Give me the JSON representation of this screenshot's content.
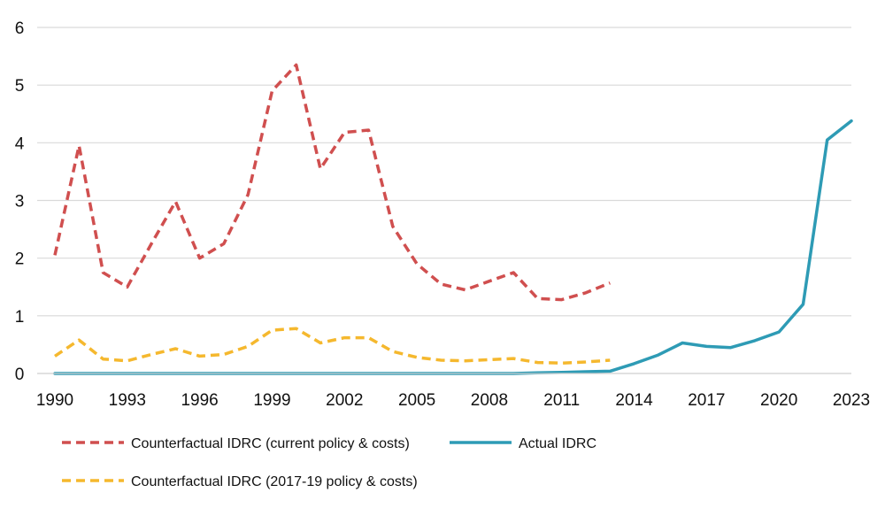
{
  "chart_data": {
    "type": "line",
    "title": "",
    "xlabel": "",
    "ylabel": "",
    "x": [
      1990,
      1991,
      1992,
      1993,
      1994,
      1995,
      1996,
      1997,
      1998,
      1999,
      2000,
      2001,
      2002,
      2003,
      2004,
      2005,
      2006,
      2007,
      2008,
      2009,
      2010,
      2011,
      2012,
      2013,
      2014,
      2015,
      2016,
      2017,
      2018,
      2019,
      2020,
      2021,
      2022,
      2023
    ],
    "x_ticks": [
      "1990",
      "1993",
      "1996",
      "1999",
      "2002",
      "2005",
      "2008",
      "2011",
      "2014",
      "2017",
      "2020",
      "2023"
    ],
    "y_ticks": [
      "0",
      "1",
      "2",
      "3",
      "4",
      "5",
      "6"
    ],
    "ylim": [
      0,
      6
    ],
    "xlim": [
      1990,
      2023
    ],
    "grid": "horizontal",
    "legend_placement": "bottom",
    "series": [
      {
        "name": "Counterfactual IDRC (current policy & costs)",
        "color": "#d04f4f",
        "style": "dashed",
        "x": [
          1990,
          1991,
          1992,
          1993,
          1994,
          1995,
          1996,
          1997,
          1998,
          1999,
          2000,
          2001,
          2002,
          2003,
          2004,
          2005,
          2006,
          2007,
          2008,
          2009,
          2010,
          2011,
          2012,
          2013
        ],
        "values": [
          2.05,
          3.95,
          1.75,
          1.5,
          2.25,
          2.98,
          2.0,
          2.25,
          3.1,
          4.9,
          5.35,
          3.55,
          4.18,
          4.22,
          2.55,
          1.9,
          1.55,
          1.45,
          1.6,
          1.75,
          1.3,
          1.28,
          1.4,
          1.57
        ]
      },
      {
        "name": "Actual IDRC",
        "color": "#2e9bb5",
        "style": "solid",
        "x": [
          1990,
          1991,
          1992,
          1993,
          1994,
          1995,
          1996,
          1997,
          1998,
          1999,
          2000,
          2001,
          2002,
          2003,
          2004,
          2005,
          2006,
          2007,
          2008,
          2009,
          2010,
          2011,
          2012,
          2013,
          2014,
          2015,
          2016,
          2017,
          2018,
          2019,
          2020,
          2021,
          2022,
          2023
        ],
        "values": [
          0,
          0,
          0,
          0,
          0,
          0,
          0,
          0,
          0,
          0,
          0,
          0,
          0,
          0,
          0,
          0,
          0,
          0,
          0,
          0,
          0.01,
          0.02,
          0.03,
          0.04,
          0.17,
          0.32,
          0.53,
          0.47,
          0.45,
          0.57,
          0.72,
          1.2,
          4.05,
          4.38
        ]
      },
      {
        "name": "Counterfactual IDRC (2017-19 policy & costs)",
        "color": "#f5b82e",
        "style": "dashed",
        "x": [
          1990,
          1991,
          1992,
          1993,
          1994,
          1995,
          1996,
          1997,
          1998,
          1999,
          2000,
          2001,
          2002,
          2003,
          2004,
          2005,
          2006,
          2007,
          2008,
          2009,
          2010,
          2011,
          2012,
          2013
        ],
        "values": [
          0.3,
          0.58,
          0.25,
          0.22,
          0.33,
          0.43,
          0.3,
          0.33,
          0.47,
          0.75,
          0.78,
          0.53,
          0.62,
          0.62,
          0.38,
          0.28,
          0.23,
          0.22,
          0.24,
          0.26,
          0.19,
          0.18,
          0.2,
          0.23
        ]
      }
    ],
    "legend": [
      {
        "label": "Counterfactual IDRC (current policy & costs)",
        "color": "#d04f4f",
        "style": "dashed"
      },
      {
        "label": "Actual IDRC",
        "color": "#2e9bb5",
        "style": "solid"
      },
      {
        "label": "Counterfactual IDRC (2017-19 policy & costs)",
        "color": "#f5b82e",
        "style": "dashed"
      }
    ]
  }
}
